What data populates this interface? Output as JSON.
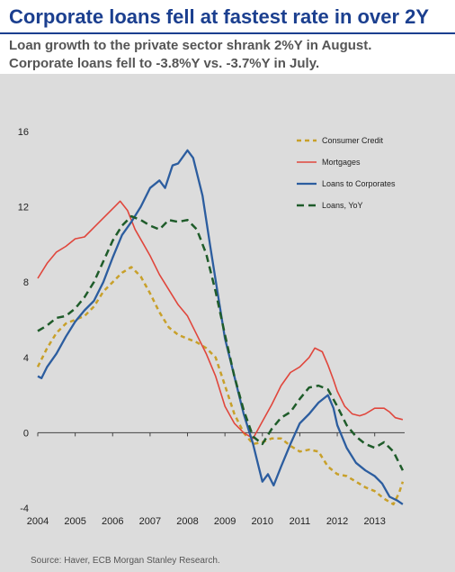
{
  "header": {
    "title": "Corporate loans fell at fastest rate in over 2Y",
    "subtitle_line1": "Loan growth to the private sector shrank 2%Y in August.",
    "subtitle_line2": "Corporate loans fell to -3.8%Y vs. -3.7%Y in July."
  },
  "footer": {
    "source": "Source: Haver, ECB Morgan Stanley Research."
  },
  "chart_data": {
    "type": "line",
    "xlim": [
      2004,
      2013.8
    ],
    "ylim": [
      -4,
      16
    ],
    "x_ticks": [
      "2004",
      "2005",
      "2006",
      "2007",
      "2008",
      "2009",
      "2010",
      "2011",
      "2012",
      "2013"
    ],
    "y_ticks": [
      "16",
      "12",
      "8",
      "4",
      "0",
      "-4"
    ],
    "grid": false,
    "legend_position": "top-right",
    "series": [
      {
        "name": "Consumer Credit",
        "color": "#c8a02a",
        "dash": "5,4",
        "width": 2.5,
        "points": [
          [
            2004.0,
            3.5
          ],
          [
            2004.25,
            4.5
          ],
          [
            2004.5,
            5.3
          ],
          [
            2004.75,
            5.8
          ],
          [
            2005.0,
            6.0
          ],
          [
            2005.25,
            6.2
          ],
          [
            2005.5,
            6.7
          ],
          [
            2005.75,
            7.5
          ],
          [
            2006.0,
            8.0
          ],
          [
            2006.25,
            8.5
          ],
          [
            2006.5,
            8.8
          ],
          [
            2006.75,
            8.3
          ],
          [
            2007.0,
            7.4
          ],
          [
            2007.25,
            6.4
          ],
          [
            2007.5,
            5.6
          ],
          [
            2007.75,
            5.2
          ],
          [
            2008.0,
            5.0
          ],
          [
            2008.25,
            4.8
          ],
          [
            2008.5,
            4.5
          ],
          [
            2008.75,
            4.0
          ],
          [
            2009.0,
            2.5
          ],
          [
            2009.25,
            1.0
          ],
          [
            2009.5,
            0.0
          ],
          [
            2009.75,
            -0.6
          ],
          [
            2010.0,
            -0.5
          ],
          [
            2010.25,
            -0.3
          ],
          [
            2010.5,
            -0.3
          ],
          [
            2010.75,
            -0.7
          ],
          [
            2011.0,
            -1.0
          ],
          [
            2011.25,
            -0.9
          ],
          [
            2011.5,
            -1.0
          ],
          [
            2011.75,
            -1.8
          ],
          [
            2012.0,
            -2.2
          ],
          [
            2012.25,
            -2.3
          ],
          [
            2012.5,
            -2.6
          ],
          [
            2012.75,
            -2.9
          ],
          [
            2013.0,
            -3.1
          ],
          [
            2013.25,
            -3.5
          ],
          [
            2013.5,
            -3.8
          ],
          [
            2013.65,
            -3.2
          ],
          [
            2013.75,
            -2.6
          ]
        ]
      },
      {
        "name": "Mortgages",
        "color": "#e0463c",
        "dash": "",
        "width": 1.6,
        "points": [
          [
            2004.0,
            8.2
          ],
          [
            2004.25,
            9.0
          ],
          [
            2004.5,
            9.6
          ],
          [
            2004.75,
            9.9
          ],
          [
            2005.0,
            10.3
          ],
          [
            2005.25,
            10.4
          ],
          [
            2005.5,
            10.9
          ],
          [
            2005.75,
            11.4
          ],
          [
            2006.0,
            11.9
          ],
          [
            2006.2,
            12.3
          ],
          [
            2006.4,
            11.8
          ],
          [
            2006.6,
            10.8
          ],
          [
            2006.8,
            10.1
          ],
          [
            2007.0,
            9.4
          ],
          [
            2007.25,
            8.4
          ],
          [
            2007.5,
            7.6
          ],
          [
            2007.75,
            6.8
          ],
          [
            2008.0,
            6.2
          ],
          [
            2008.25,
            5.2
          ],
          [
            2008.5,
            4.2
          ],
          [
            2008.75,
            3.0
          ],
          [
            2009.0,
            1.4
          ],
          [
            2009.25,
            0.5
          ],
          [
            2009.5,
            0.0
          ],
          [
            2009.75,
            -0.3
          ],
          [
            2010.0,
            0.6
          ],
          [
            2010.25,
            1.5
          ],
          [
            2010.5,
            2.5
          ],
          [
            2010.75,
            3.2
          ],
          [
            2011.0,
            3.5
          ],
          [
            2011.25,
            4.0
          ],
          [
            2011.4,
            4.5
          ],
          [
            2011.6,
            4.3
          ],
          [
            2011.75,
            3.6
          ],
          [
            2011.9,
            2.8
          ],
          [
            2012.0,
            2.2
          ],
          [
            2012.2,
            1.4
          ],
          [
            2012.4,
            1.0
          ],
          [
            2012.6,
            0.9
          ],
          [
            2012.75,
            1.0
          ],
          [
            2013.0,
            1.3
          ],
          [
            2013.25,
            1.3
          ],
          [
            2013.4,
            1.1
          ],
          [
            2013.55,
            0.8
          ],
          [
            2013.75,
            0.7
          ]
        ]
      },
      {
        "name": "Loans to Corporates",
        "color": "#2c5d9f",
        "dash": "",
        "width": 2.3,
        "points": [
          [
            2004.0,
            3.0
          ],
          [
            2004.1,
            2.9
          ],
          [
            2004.25,
            3.5
          ],
          [
            2004.5,
            4.2
          ],
          [
            2004.75,
            5.1
          ],
          [
            2005.0,
            5.9
          ],
          [
            2005.25,
            6.5
          ],
          [
            2005.5,
            7.0
          ],
          [
            2005.75,
            8.0
          ],
          [
            2006.0,
            9.3
          ],
          [
            2006.25,
            10.5
          ],
          [
            2006.5,
            11.2
          ],
          [
            2006.75,
            12.0
          ],
          [
            2007.0,
            13.0
          ],
          [
            2007.25,
            13.4
          ],
          [
            2007.4,
            13.0
          ],
          [
            2007.6,
            14.2
          ],
          [
            2007.75,
            14.3
          ],
          [
            2008.0,
            15.0
          ],
          [
            2008.15,
            14.6
          ],
          [
            2008.4,
            12.6
          ],
          [
            2008.6,
            10.0
          ],
          [
            2008.8,
            7.5
          ],
          [
            2009.0,
            5.0
          ],
          [
            2009.25,
            3.0
          ],
          [
            2009.5,
            1.0
          ],
          [
            2009.75,
            -0.6
          ],
          [
            2009.9,
            -1.8
          ],
          [
            2010.0,
            -2.6
          ],
          [
            2010.15,
            -2.2
          ],
          [
            2010.3,
            -2.8
          ],
          [
            2010.5,
            -1.8
          ],
          [
            2010.75,
            -0.6
          ],
          [
            2011.0,
            0.5
          ],
          [
            2011.25,
            1.0
          ],
          [
            2011.5,
            1.6
          ],
          [
            2011.75,
            2.0
          ],
          [
            2011.9,
            1.3
          ],
          [
            2012.0,
            0.4
          ],
          [
            2012.25,
            -0.8
          ],
          [
            2012.5,
            -1.6
          ],
          [
            2012.75,
            -2.0
          ],
          [
            2013.0,
            -2.3
          ],
          [
            2013.2,
            -2.7
          ],
          [
            2013.4,
            -3.4
          ],
          [
            2013.6,
            -3.6
          ],
          [
            2013.75,
            -3.8
          ]
        ]
      },
      {
        "name": "Loans, YoY",
        "color": "#1f5c2a",
        "dash": "8,5",
        "width": 2.5,
        "points": [
          [
            2004.0,
            5.4
          ],
          [
            2004.25,
            5.7
          ],
          [
            2004.5,
            6.1
          ],
          [
            2004.75,
            6.2
          ],
          [
            2005.0,
            6.6
          ],
          [
            2005.25,
            7.2
          ],
          [
            2005.5,
            8.0
          ],
          [
            2005.75,
            9.1
          ],
          [
            2006.0,
            10.2
          ],
          [
            2006.25,
            11.0
          ],
          [
            2006.5,
            11.5
          ],
          [
            2006.75,
            11.3
          ],
          [
            2007.0,
            11.0
          ],
          [
            2007.25,
            10.8
          ],
          [
            2007.5,
            11.3
          ],
          [
            2007.75,
            11.2
          ],
          [
            2008.0,
            11.3
          ],
          [
            2008.25,
            10.8
          ],
          [
            2008.5,
            9.5
          ],
          [
            2008.75,
            7.5
          ],
          [
            2009.0,
            5.2
          ],
          [
            2009.25,
            3.0
          ],
          [
            2009.5,
            1.2
          ],
          [
            2009.75,
            -0.2
          ],
          [
            2010.0,
            -0.6
          ],
          [
            2010.25,
            0.2
          ],
          [
            2010.5,
            0.8
          ],
          [
            2010.75,
            1.1
          ],
          [
            2011.0,
            1.8
          ],
          [
            2011.25,
            2.4
          ],
          [
            2011.5,
            2.5
          ],
          [
            2011.75,
            2.3
          ],
          [
            2012.0,
            1.4
          ],
          [
            2012.25,
            0.4
          ],
          [
            2012.5,
            -0.2
          ],
          [
            2012.75,
            -0.6
          ],
          [
            2013.0,
            -0.8
          ],
          [
            2013.25,
            -0.5
          ],
          [
            2013.5,
            -1.0
          ],
          [
            2013.75,
            -2.0
          ]
        ]
      }
    ]
  }
}
